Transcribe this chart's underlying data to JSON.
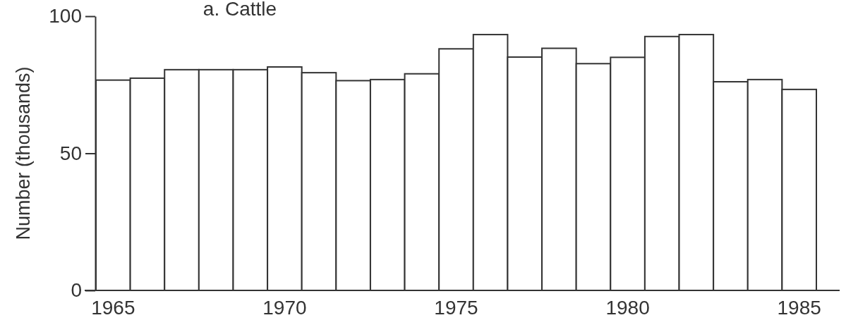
{
  "chart_data": {
    "type": "bar",
    "title": "a. Cattle",
    "ylabel": "Number (thousands)",
    "categories": [
      "1965",
      null,
      null,
      null,
      null,
      "1970",
      null,
      null,
      null,
      null,
      "1975",
      null,
      null,
      null,
      null,
      "1980",
      null,
      null,
      null,
      null,
      "1985"
    ],
    "values": [
      76.7,
      77.4,
      80.5,
      80.5,
      80.5,
      81.5,
      79.4,
      76.5,
      76.9,
      79.0,
      88.1,
      93.3,
      85.1,
      88.3,
      82.7,
      85.0,
      92.6,
      93.3,
      76.1,
      76.9,
      73.3
    ],
    "color": "#ffffff",
    "ylim": [
      0,
      100
    ],
    "yticks": [
      0,
      50,
      100
    ],
    "grid": false
  }
}
